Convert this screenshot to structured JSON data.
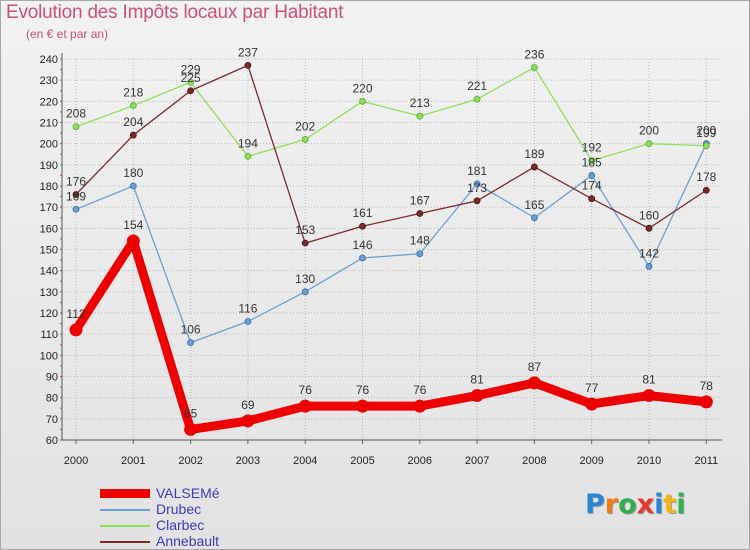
{
  "chart_data": {
    "type": "line",
    "title": "Evolution des Impôts locaux par Habitant",
    "subtitle": "(en € et par an)",
    "xlabel": "",
    "ylabel": "",
    "ylim": [
      60,
      240
    ],
    "y_ticks": [
      60,
      70,
      80,
      90,
      100,
      110,
      120,
      130,
      140,
      150,
      160,
      170,
      180,
      190,
      200,
      210,
      220,
      230,
      240
    ],
    "categories": [
      "2000",
      "2001",
      "2002",
      "2003",
      "2004",
      "2005",
      "2006",
      "2007",
      "2008",
      "2009",
      "2010",
      "2011"
    ],
    "series": [
      {
        "name": "VALSEMé",
        "color": "#ee0000",
        "width": 9,
        "values": [
          112,
          154,
          65,
          69,
          76,
          76,
          76,
          81,
          87,
          77,
          81,
          78
        ],
        "labels": [
          "112",
          "154",
          "65",
          "69",
          "76",
          "76",
          "76",
          "81",
          "87",
          "77",
          "81",
          "78"
        ]
      },
      {
        "name": "Drubec",
        "color": "#6a9fd4",
        "width": 1.3,
        "values": [
          169,
          180,
          106,
          116,
          130,
          146,
          148,
          181,
          165,
          185,
          142,
          200
        ],
        "labels": [
          "169",
          "180",
          "106",
          "116",
          "130",
          "146",
          "148",
          "181",
          "165",
          "185",
          "142",
          "200"
        ]
      },
      {
        "name": "Clarbec",
        "color": "#8ede5a",
        "width": 1.3,
        "values": [
          208,
          218,
          229,
          194,
          202,
          220,
          213,
          221,
          236,
          192,
          200,
          199
        ],
        "labels": [
          "208",
          "218",
          "229",
          "194",
          "202",
          "220",
          "213",
          "221",
          "236",
          "192",
          "200",
          "199"
        ]
      },
      {
        "name": "Annebault",
        "color": "#7a2a2a",
        "width": 1.3,
        "values": [
          176,
          204,
          225,
          237,
          153,
          161,
          167,
          173,
          189,
          174,
          160,
          178
        ],
        "labels": [
          "176",
          "204",
          "225",
          "237",
          "153",
          "161",
          "167",
          "173",
          "189",
          "174",
          "160",
          "178"
        ]
      }
    ],
    "legend_position": "bottom-left",
    "grid": true
  },
  "logo": {
    "letters": [
      "P",
      "r",
      "o",
      "x",
      "i",
      "t",
      "i"
    ],
    "colors": [
      "#2a86d8",
      "#f07d10",
      "#2fb04a",
      "#e6352b",
      "#2a86d8",
      "#f0b814",
      "#2fb04a"
    ]
  }
}
